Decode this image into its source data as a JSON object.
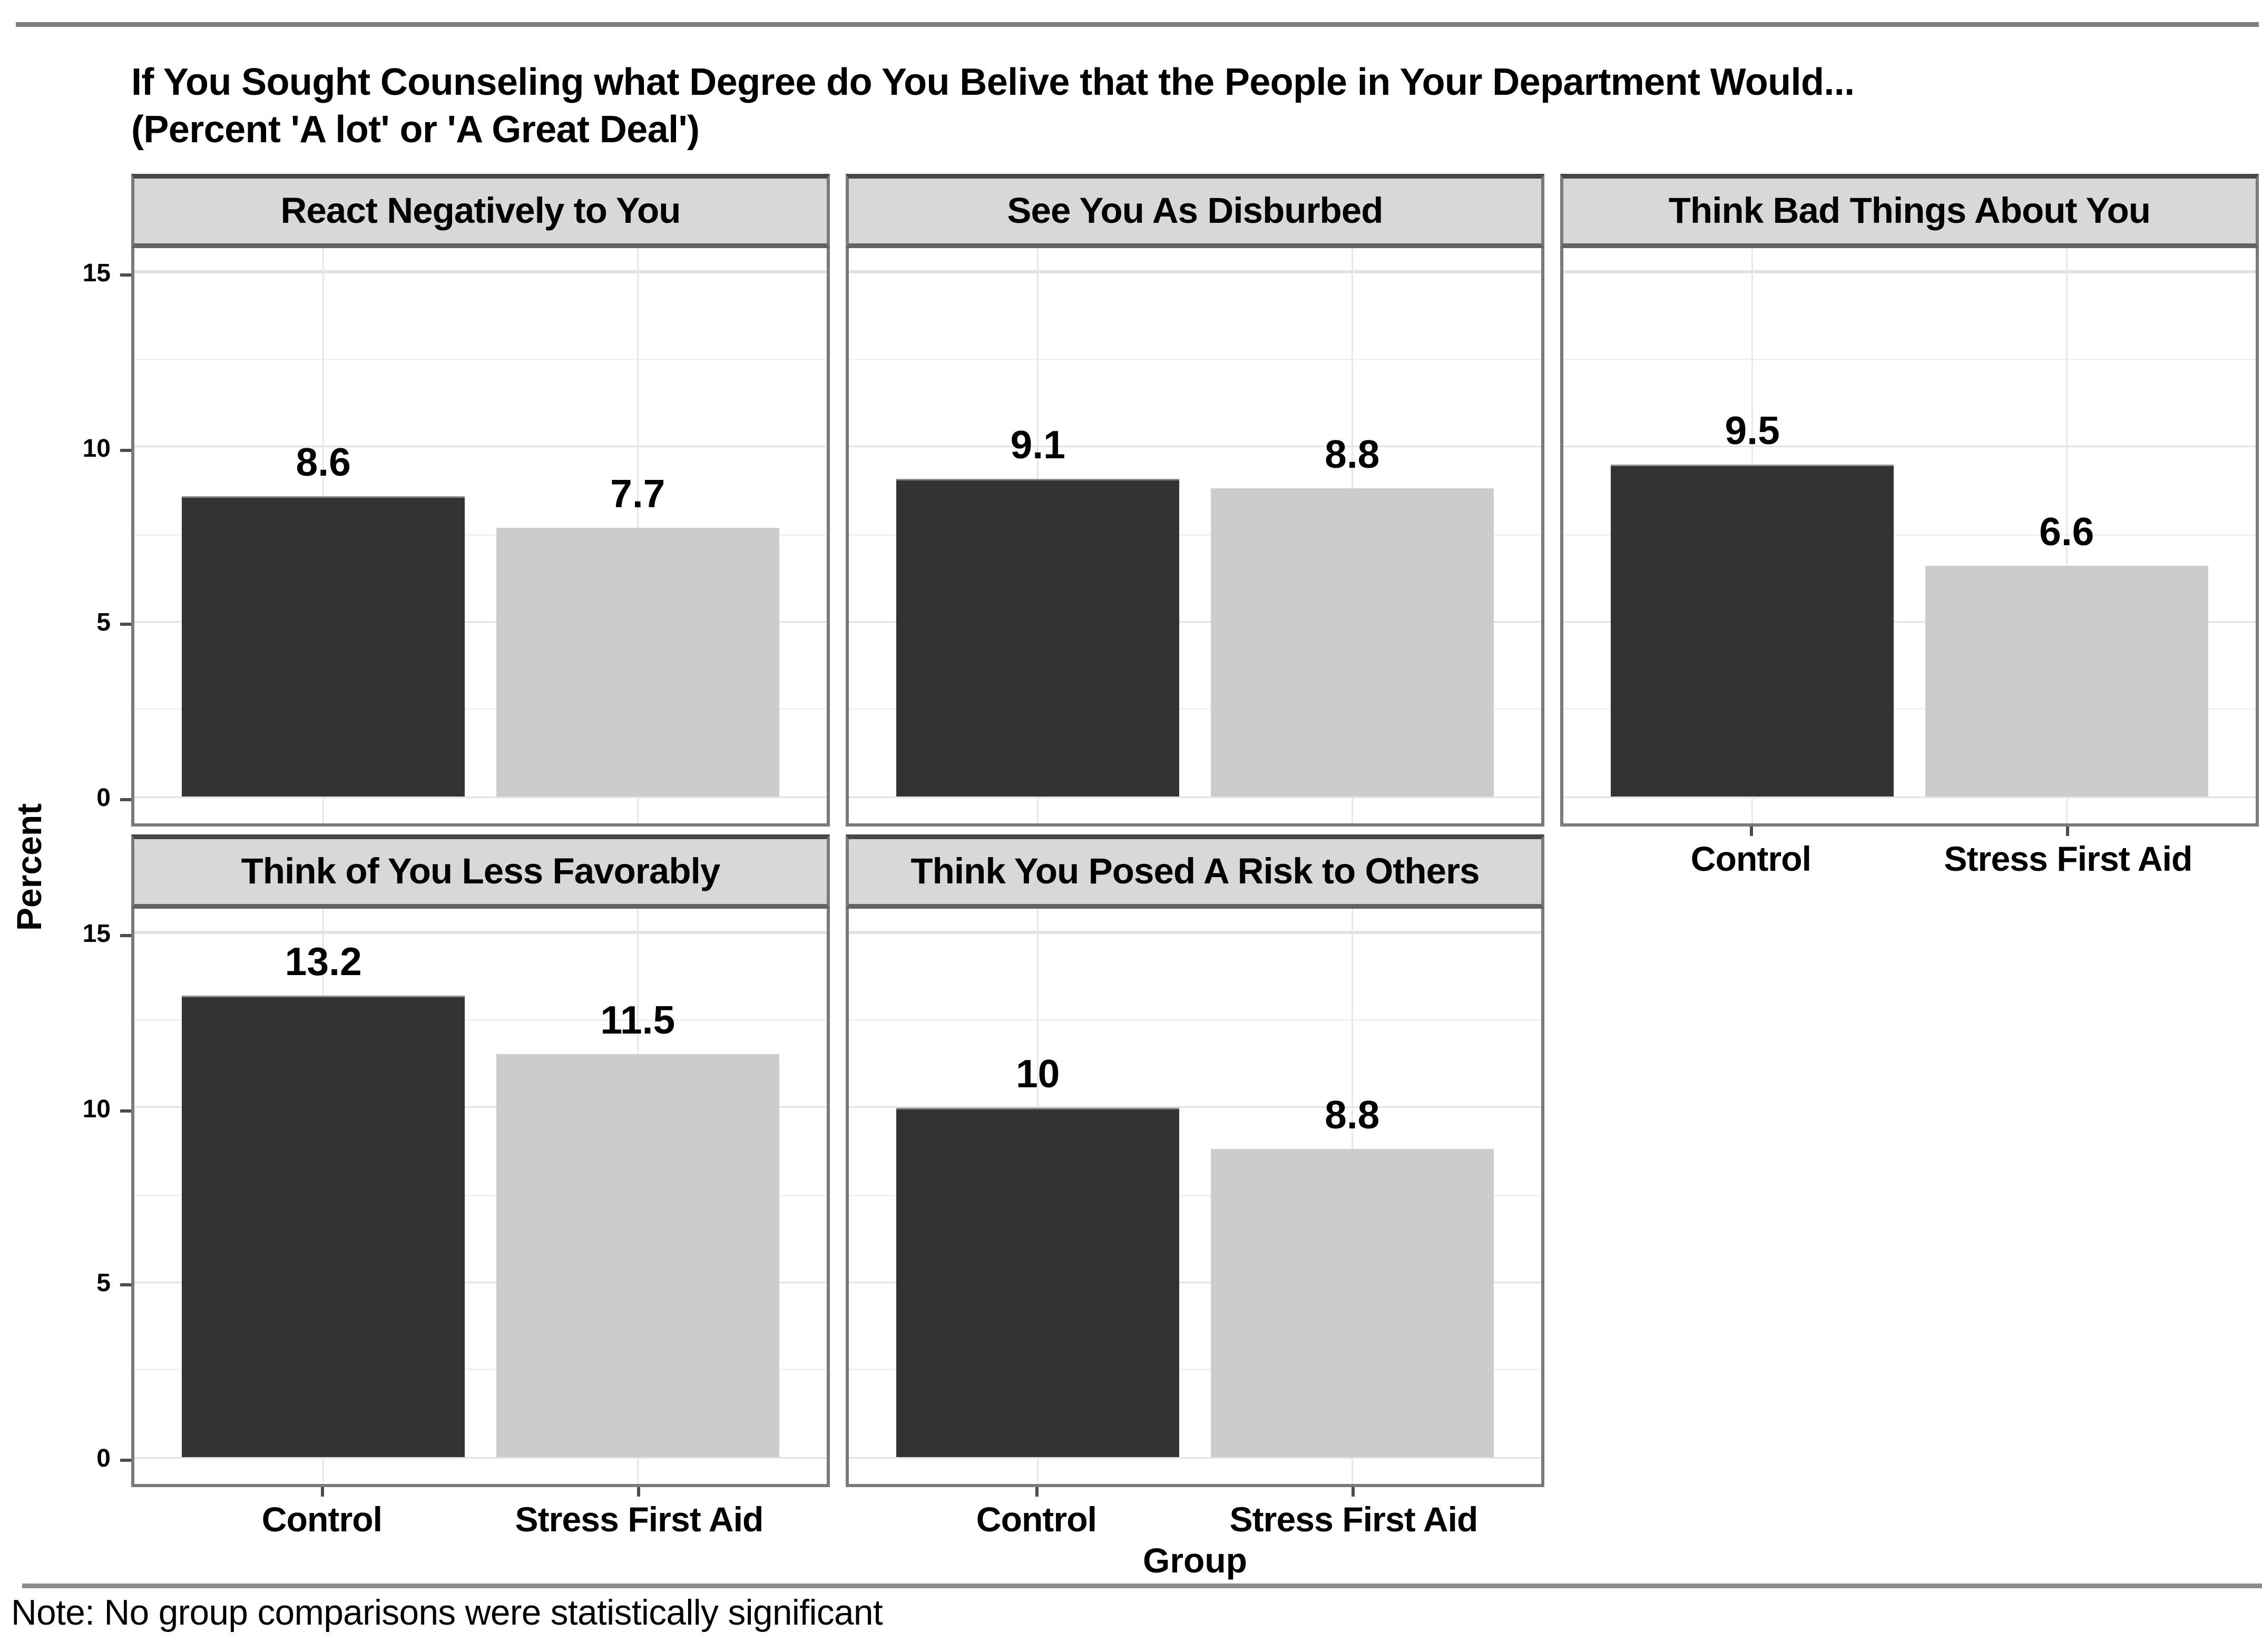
{
  "title": {
    "line1": "If You Sought Counseling what Degree do You Belive that the People in Your Department Would...",
    "line2": "(Percent 'A lot' or 'A Great Deal')"
  },
  "note": "Note: No group comparisons were statistically significant",
  "chart_data": {
    "type": "bar",
    "title": "If You Sought Counseling what Degree do You Belive that the People in Your Department Would... (Percent 'A lot' or 'A Great Deal')",
    "xlabel": "Group",
    "ylabel": "Percent",
    "ylim": [
      0,
      15
    ],
    "yticks": [
      0,
      5,
      10,
      15
    ],
    "minor_gridlines": [
      2.5,
      7.5,
      12.5
    ],
    "grid": "on",
    "legend": "none",
    "categories": [
      "Control",
      "Stress First Aid"
    ],
    "facets": [
      {
        "title": "React Negatively to You",
        "values": [
          8.6,
          7.7
        ],
        "value_labels": [
          "8.6",
          "7.7"
        ],
        "x_labels_visible": false
      },
      {
        "title": "See You As Disburbed",
        "values": [
          9.1,
          8.8
        ],
        "value_labels": [
          "9.1",
          "8.8"
        ],
        "x_labels_visible": false
      },
      {
        "title": "Think Bad Things About You",
        "values": [
          9.5,
          6.6
        ],
        "value_labels": [
          "9.5",
          "6.6"
        ],
        "x_labels_visible": true
      },
      {
        "title": "Think of You Less Favorably",
        "values": [
          13.2,
          11.5
        ],
        "value_labels": [
          "13.2",
          "11.5"
        ],
        "x_labels_visible": true
      },
      {
        "title": "Think You Posed A Risk to Others",
        "values": [
          10,
          8.8
        ],
        "value_labels": [
          "10",
          "8.8"
        ],
        "x_labels_visible": true
      }
    ],
    "series_colors": {
      "Control": "#333333",
      "Stress First Aid": "#cccccc"
    },
    "note": "Note: No group comparisons were statistically significant"
  },
  "colors": {
    "panel_header_bg": "#d8d8d8",
    "panel_border": "#7a7a7a",
    "grid_major": "#e2e2e2",
    "grid_minor": "#f1f1f1",
    "rule": "#7f7f7f",
    "bar_control": "#333333",
    "bar_stress_first_aid": "#cccccc",
    "text": "#000000"
  }
}
